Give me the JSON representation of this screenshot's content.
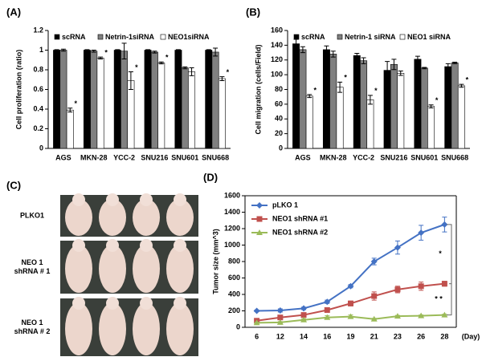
{
  "chart_data": [
    {
      "type": "bar",
      "panel_label": "(A)",
      "ylabel": "Cell proliferation (ratio)",
      "categories": [
        "AGS",
        "MKN-28",
        "YCC-2",
        "SNU216",
        "SNU601",
        "SNU668"
      ],
      "ylim": [
        0,
        1.2
      ],
      "yticks": [
        0,
        0.2,
        0.4,
        0.6,
        0.8,
        1,
        1.2
      ],
      "series": [
        {
          "name": "scRNA",
          "color": "#000000",
          "values": [
            1,
            1,
            1,
            1,
            1,
            1
          ],
          "errors": [
            0.005,
            0.005,
            0.005,
            0.005,
            0.005,
            0.005
          ]
        },
        {
          "name": "Netrin-1siRNA",
          "color": "#808080",
          "values": [
            1.0,
            0.99,
            0.99,
            0.98,
            0.82,
            0.98
          ],
          "errors": [
            0.01,
            0.01,
            0.08,
            0.01,
            0.01,
            0.04
          ]
        },
        {
          "name": "NEO1siRNA",
          "color": "#ffffff",
          "values": [
            0.39,
            0.92,
            0.69,
            0.87,
            0.78,
            0.71
          ],
          "errors": [
            0.02,
            0.01,
            0.09,
            0.01,
            0.04,
            0.02
          ],
          "markers": [
            "*",
            "*",
            "*",
            "*",
            null,
            "*"
          ]
        }
      ]
    },
    {
      "type": "bar",
      "panel_label": "(B)",
      "ylabel": "Cell migration (cells/Field)",
      "categories": [
        "AGS",
        "MKN-28",
        "YCC-2",
        "SNU216",
        "SNU601",
        "SNU668"
      ],
      "ylim": [
        0,
        160
      ],
      "yticks": [
        0,
        20,
        40,
        60,
        80,
        100,
        120,
        140,
        160
      ],
      "series": [
        {
          "name": "scRNA",
          "color": "#000000",
          "values": [
            142,
            134,
            126,
            106,
            121,
            111
          ],
          "errors": [
            6,
            5,
            3,
            12,
            4,
            4
          ]
        },
        {
          "name": "Netrin-1 siRNA",
          "color": "#808080",
          "values": [
            134,
            128,
            119,
            114,
            109,
            116
          ],
          "errors": [
            4,
            4,
            4,
            7,
            1,
            1
          ]
        },
        {
          "name": "NEO1 siRNA",
          "color": "#ffffff",
          "values": [
            71,
            83,
            66,
            102,
            57,
            85
          ],
          "errors": [
            2,
            7,
            6,
            3,
            2,
            2
          ],
          "markers": [
            "*",
            "*",
            "*",
            null,
            "*",
            "*"
          ]
        }
      ]
    },
    {
      "type": "line",
      "panel_label": "(D)",
      "ylabel": "Tumor size (mm^3)",
      "xlabel": "(Day)",
      "categories": [
        "6",
        "12",
        "14",
        "16",
        "19",
        "21",
        "23",
        "26",
        "28"
      ],
      "ylim": [
        0,
        1600
      ],
      "yticks": [
        0,
        200,
        400,
        600,
        800,
        1000,
        1200,
        1400,
        1600
      ],
      "annotations": [
        "*",
        "* *"
      ],
      "series": [
        {
          "name": "pLKO 1",
          "color": "#4472c4",
          "marker": "diamond",
          "values": [
            200,
            205,
            230,
            310,
            500,
            800,
            970,
            1150,
            1250
          ],
          "errors": [
            10,
            20,
            15,
            20,
            20,
            40,
            80,
            90,
            90
          ]
        },
        {
          "name": "NEO1 shRNA #1",
          "color": "#c0504d",
          "marker": "square",
          "values": [
            80,
            120,
            150,
            210,
            290,
            380,
            460,
            500,
            530
          ],
          "errors": [
            10,
            10,
            15,
            15,
            30,
            50,
            40,
            50,
            30
          ]
        },
        {
          "name": "NEO1 shRNA #2",
          "color": "#9bbb59",
          "marker": "triangle",
          "values": [
            55,
            60,
            90,
            120,
            130,
            100,
            135,
            140,
            150
          ],
          "errors": [
            5,
            10,
            15,
            20,
            20,
            10,
            10,
            10,
            10
          ]
        }
      ]
    }
  ],
  "photo_panel": {
    "panel_label": "(C)",
    "rows": [
      [
        "PLKO1"
      ],
      [
        "NEO 1",
        "shRNA # 1"
      ],
      [
        "NEO 1",
        "shRNA # 2"
      ]
    ]
  }
}
